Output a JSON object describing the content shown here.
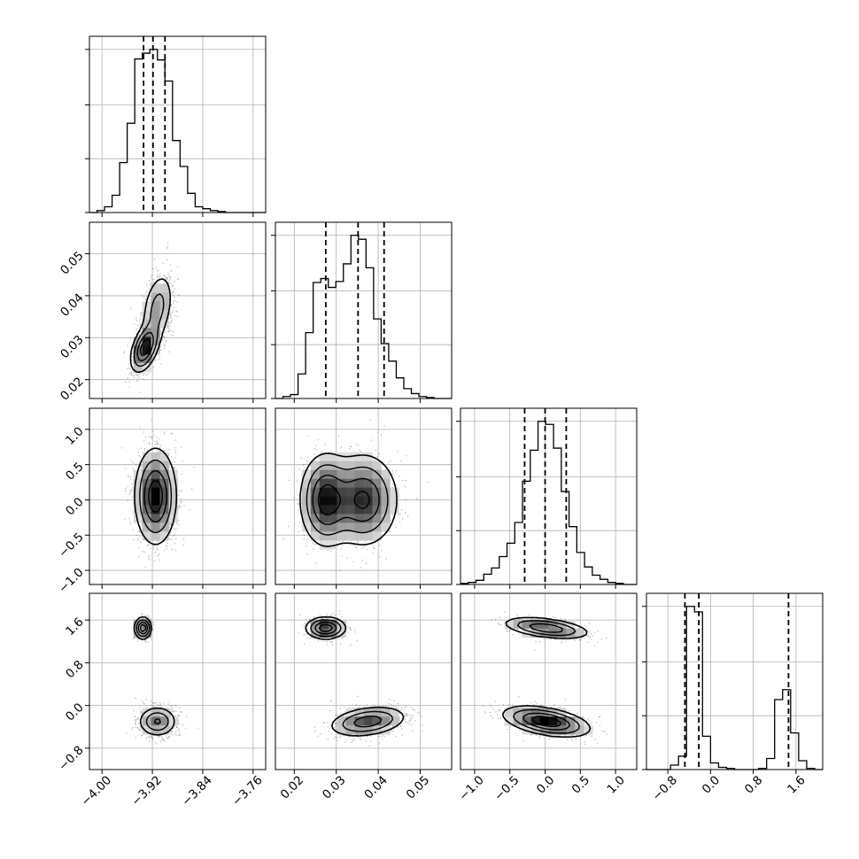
{
  "chart_data": {
    "type": "corner",
    "title": "",
    "grid": true,
    "parameters": [
      {
        "label": "",
        "range": [
          -4.02,
          -3.74
        ],
        "ticks": [
          -4.0,
          -3.92,
          -3.84,
          -3.76
        ],
        "tick_labels": [
          "−4.00",
          "−3.92",
          "−3.84",
          "−3.76"
        ],
        "quantiles": [
          -3.934,
          -3.919,
          -3.9
        ],
        "histogram": {
          "bin_edges": [
            -4.02,
            -4.008,
            -3.996,
            -3.984,
            -3.972,
            -3.96,
            -3.948,
            -3.936,
            -3.924,
            -3.912,
            -3.9,
            -3.888,
            -3.876,
            -3.864,
            -3.852,
            -3.84,
            -3.828,
            -3.816,
            -3.804,
            -3.792,
            -3.78,
            -3.768,
            -3.756,
            -3.74
          ],
          "counts": [
            0,
            2,
            6,
            18,
            52,
            93,
            160,
            166,
            170,
            159,
            137,
            75,
            48,
            20,
            6,
            4,
            2,
            1,
            0,
            0,
            0,
            0,
            0
          ]
        }
      },
      {
        "label": "",
        "range": [
          0.0155,
          0.0575
        ],
        "ticks": [
          0.02,
          0.03,
          0.04,
          0.05
        ],
        "tick_labels": [
          "0.02",
          "0.03",
          "0.04",
          "0.05"
        ],
        "quantiles": [
          0.0275,
          0.0352,
          0.0414
        ],
        "histogram": {
          "bin_edges": [
            0.0155,
            0.0173,
            0.0191,
            0.0209,
            0.0227,
            0.0245,
            0.0263,
            0.0281,
            0.0299,
            0.0317,
            0.0335,
            0.0353,
            0.0371,
            0.0389,
            0.0407,
            0.0425,
            0.0443,
            0.0461,
            0.0479,
            0.0497,
            0.0515,
            0.0533,
            0.0551,
            0.0575
          ],
          "counts": [
            0,
            2,
            4,
            25,
            67,
            118,
            122,
            113,
            119,
            137,
            166,
            162,
            133,
            81,
            56,
            38,
            21,
            10,
            5,
            2,
            1,
            0,
            0
          ]
        }
      },
      {
        "label": "",
        "range": [
          -1.2,
          1.3
        ],
        "ticks": [
          -1.0,
          -0.5,
          0.0,
          0.5,
          1.0
        ],
        "tick_labels": [
          "−1.0",
          "−0.5",
          "0.0",
          "0.5",
          "1.0"
        ],
        "quantiles": [
          -0.29,
          0.0,
          0.3
        ],
        "histogram": {
          "bin_edges": [
            -1.2,
            -1.09,
            -0.98,
            -0.87,
            -0.76,
            -0.65,
            -0.54,
            -0.43,
            -0.32,
            -0.21,
            -0.1,
            0.01,
            0.12,
            0.23,
            0.34,
            0.45,
            0.56,
            0.67,
            0.78,
            0.89,
            1.0,
            1.11,
            1.3
          ],
          "counts": [
            1,
            2,
            4,
            10,
            16,
            27,
            40,
            60,
            100,
            130,
            158,
            155,
            132,
            90,
            56,
            31,
            17,
            9,
            5,
            2,
            1,
            0
          ]
        }
      },
      {
        "label": "",
        "range": [
          -1.2,
          2.1
        ],
        "ticks": [
          -0.8,
          0.0,
          0.8,
          1.6
        ],
        "tick_labels": [
          "−0.8",
          "0.0",
          "0.8",
          "1.6"
        ],
        "quantiles": [
          -0.48,
          -0.22,
          1.46
        ],
        "histogram": {
          "bin_edges": [
            -1.2,
            -1.05,
            -0.9,
            -0.75,
            -0.6,
            -0.45,
            -0.3,
            -0.15,
            0.0,
            0.15,
            0.3,
            0.45,
            0.6,
            0.75,
            0.9,
            1.05,
            1.2,
            1.35,
            1.5,
            1.65,
            1.8,
            1.95,
            2.1
          ],
          "counts": [
            0,
            0,
            0,
            4,
            12,
            147,
            142,
            30,
            6,
            2,
            1,
            0,
            0,
            0,
            1,
            10,
            63,
            72,
            33,
            8,
            1,
            0
          ]
        }
      }
    ],
    "joint_panels": [
      {
        "x_param": 0,
        "y_param": 1,
        "modes": [
          {
            "mean": [
              -3.932,
              0.0275
            ],
            "sd": [
              0.011,
              0.0028
            ],
            "corr": 0.45,
            "weight": 0.55
          },
          {
            "mean": [
              -3.912,
              0.037
            ],
            "sd": [
              0.013,
              0.0045
            ],
            "corr": 0.35,
            "weight": 0.45
          }
        ]
      },
      {
        "x_param": 0,
        "y_param": 2,
        "modes": [
          {
            "mean": [
              -3.915,
              0.05
            ],
            "sd": [
              0.016,
              0.33
            ],
            "corr": 0.0,
            "weight": 1.0
          }
        ]
      },
      {
        "x_param": 1,
        "y_param": 2,
        "modes": [
          {
            "mean": [
              0.0275,
              0.0
            ],
            "sd": [
              0.003,
              0.32
            ],
            "corr": 0.0,
            "weight": 0.45
          },
          {
            "mean": [
              0.0365,
              0.0
            ],
            "sd": [
              0.004,
              0.32
            ],
            "corr": 0.0,
            "weight": 0.55
          }
        ]
      },
      {
        "x_param": 0,
        "y_param": 3,
        "modes": [
          {
            "mean": [
              -3.935,
              1.45
            ],
            "sd": [
              0.0065,
              0.1
            ],
            "corr": 0.0,
            "weight": 0.35
          },
          {
            "mean": [
              -3.912,
              -0.3
            ],
            "sd": [
              0.015,
              0.14
            ],
            "corr": 0.0,
            "weight": 0.65
          }
        ]
      },
      {
        "x_param": 1,
        "y_param": 3,
        "modes": [
          {
            "mean": [
              0.0275,
              1.45
            ],
            "sd": [
              0.0023,
              0.1
            ],
            "corr": 0.0,
            "weight": 0.35
          },
          {
            "mean": [
              0.0375,
              -0.3
            ],
            "sd": [
              0.0045,
              0.14
            ],
            "corr": 0.3,
            "weight": 0.65
          }
        ]
      },
      {
        "x_param": 2,
        "y_param": 3,
        "modes": [
          {
            "mean": [
              0.02,
              1.45
            ],
            "sd": [
              0.3,
              0.1
            ],
            "corr": -0.45,
            "weight": 0.35
          },
          {
            "mean": [
              0.02,
              -0.3
            ],
            "sd": [
              0.3,
              0.14
            ],
            "corr": -0.45,
            "weight": 0.65
          }
        ]
      }
    ]
  }
}
